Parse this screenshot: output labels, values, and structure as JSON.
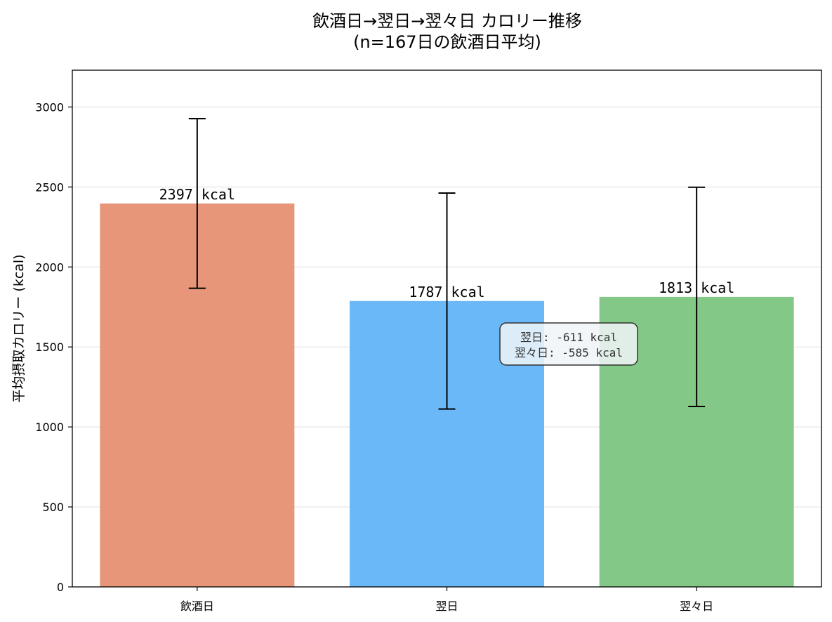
{
  "chart_data": {
    "type": "bar",
    "title": "飲酒日→翌日→翌々日 カロリー推移",
    "subtitle": "(n=167日の飲酒日平均)",
    "xlabel": "",
    "ylabel": "平均摂取カロリー (kcal)",
    "categories": [
      "飲酒日",
      "翌日",
      "翌々日"
    ],
    "values": [
      2397,
      1787,
      1813
    ],
    "error": [
      530,
      675,
      685
    ],
    "value_labels": [
      "2397 kcal",
      "1787 kcal",
      "1813 kcal"
    ],
    "colors": [
      "#E8967A",
      "#6AB8F7",
      "#84C887"
    ],
    "ylim": [
      0,
      3230
    ],
    "yticks": [
      0,
      500,
      1000,
      1500,
      2000,
      2500,
      3000
    ],
    "grid": "y",
    "annotation": {
      "lines": [
        "翌日: -611 kcal",
        "翌々日: -585 kcal"
      ]
    }
  }
}
